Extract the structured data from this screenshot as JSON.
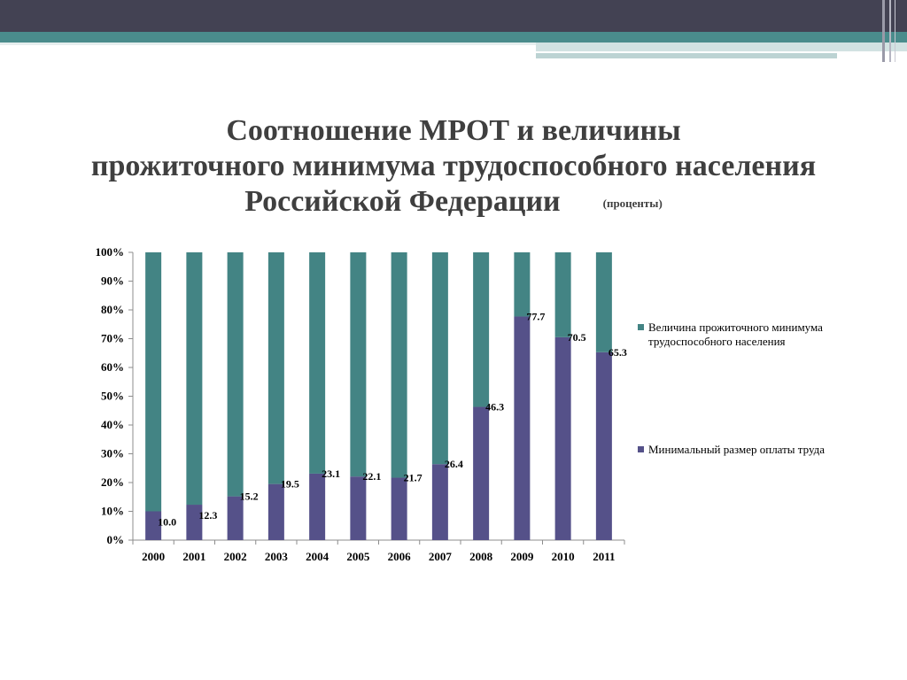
{
  "header": {
    "title_line1": "Соотношение МРОТ и величины",
    "title_line2": "прожиточного минимума трудоспособного населения",
    "title_line3": "Российской Федерации",
    "title_note": "(проценты)"
  },
  "colors": {
    "top_band": "#434253",
    "teal_stripe": "#4a8c8c",
    "light_stripe": "#bcd3d3",
    "mrot": "#555189",
    "subsistence": "#438484"
  },
  "chart_data": {
    "type": "bar",
    "stacked": true,
    "percent_stacked": true,
    "categories": [
      "2000",
      "2001",
      "2002",
      "2003",
      "2004",
      "2005",
      "2006",
      "2007",
      "2008",
      "2009",
      "2010",
      "2011"
    ],
    "series": [
      {
        "name": "Минимальный размер оплаты труда",
        "color": "#555189",
        "values": [
          10.0,
          12.3,
          15.2,
          19.5,
          23.1,
          22.1,
          21.7,
          26.4,
          46.3,
          77.7,
          70.5,
          65.3
        ],
        "labels": [
          "10.0",
          "12.3",
          "15.2",
          "19.5",
          "23.1",
          "22.1",
          "21.7",
          "26.4",
          "46.3",
          "77.7",
          "70.5",
          "65.3"
        ]
      },
      {
        "name": "Величина прожиточного минимума трудоспособного населения",
        "color": "#438484",
        "values": [
          90.0,
          87.7,
          84.8,
          80.5,
          76.9,
          77.9,
          78.3,
          73.6,
          53.7,
          22.3,
          29.5,
          34.7
        ]
      }
    ],
    "y_ticks": [
      "0%",
      "10%",
      "20%",
      "30%",
      "40%",
      "50%",
      "60%",
      "70%",
      "80%",
      "90%",
      "100%"
    ],
    "ylim": [
      0,
      100
    ],
    "grid": false,
    "legend_position": "right"
  }
}
